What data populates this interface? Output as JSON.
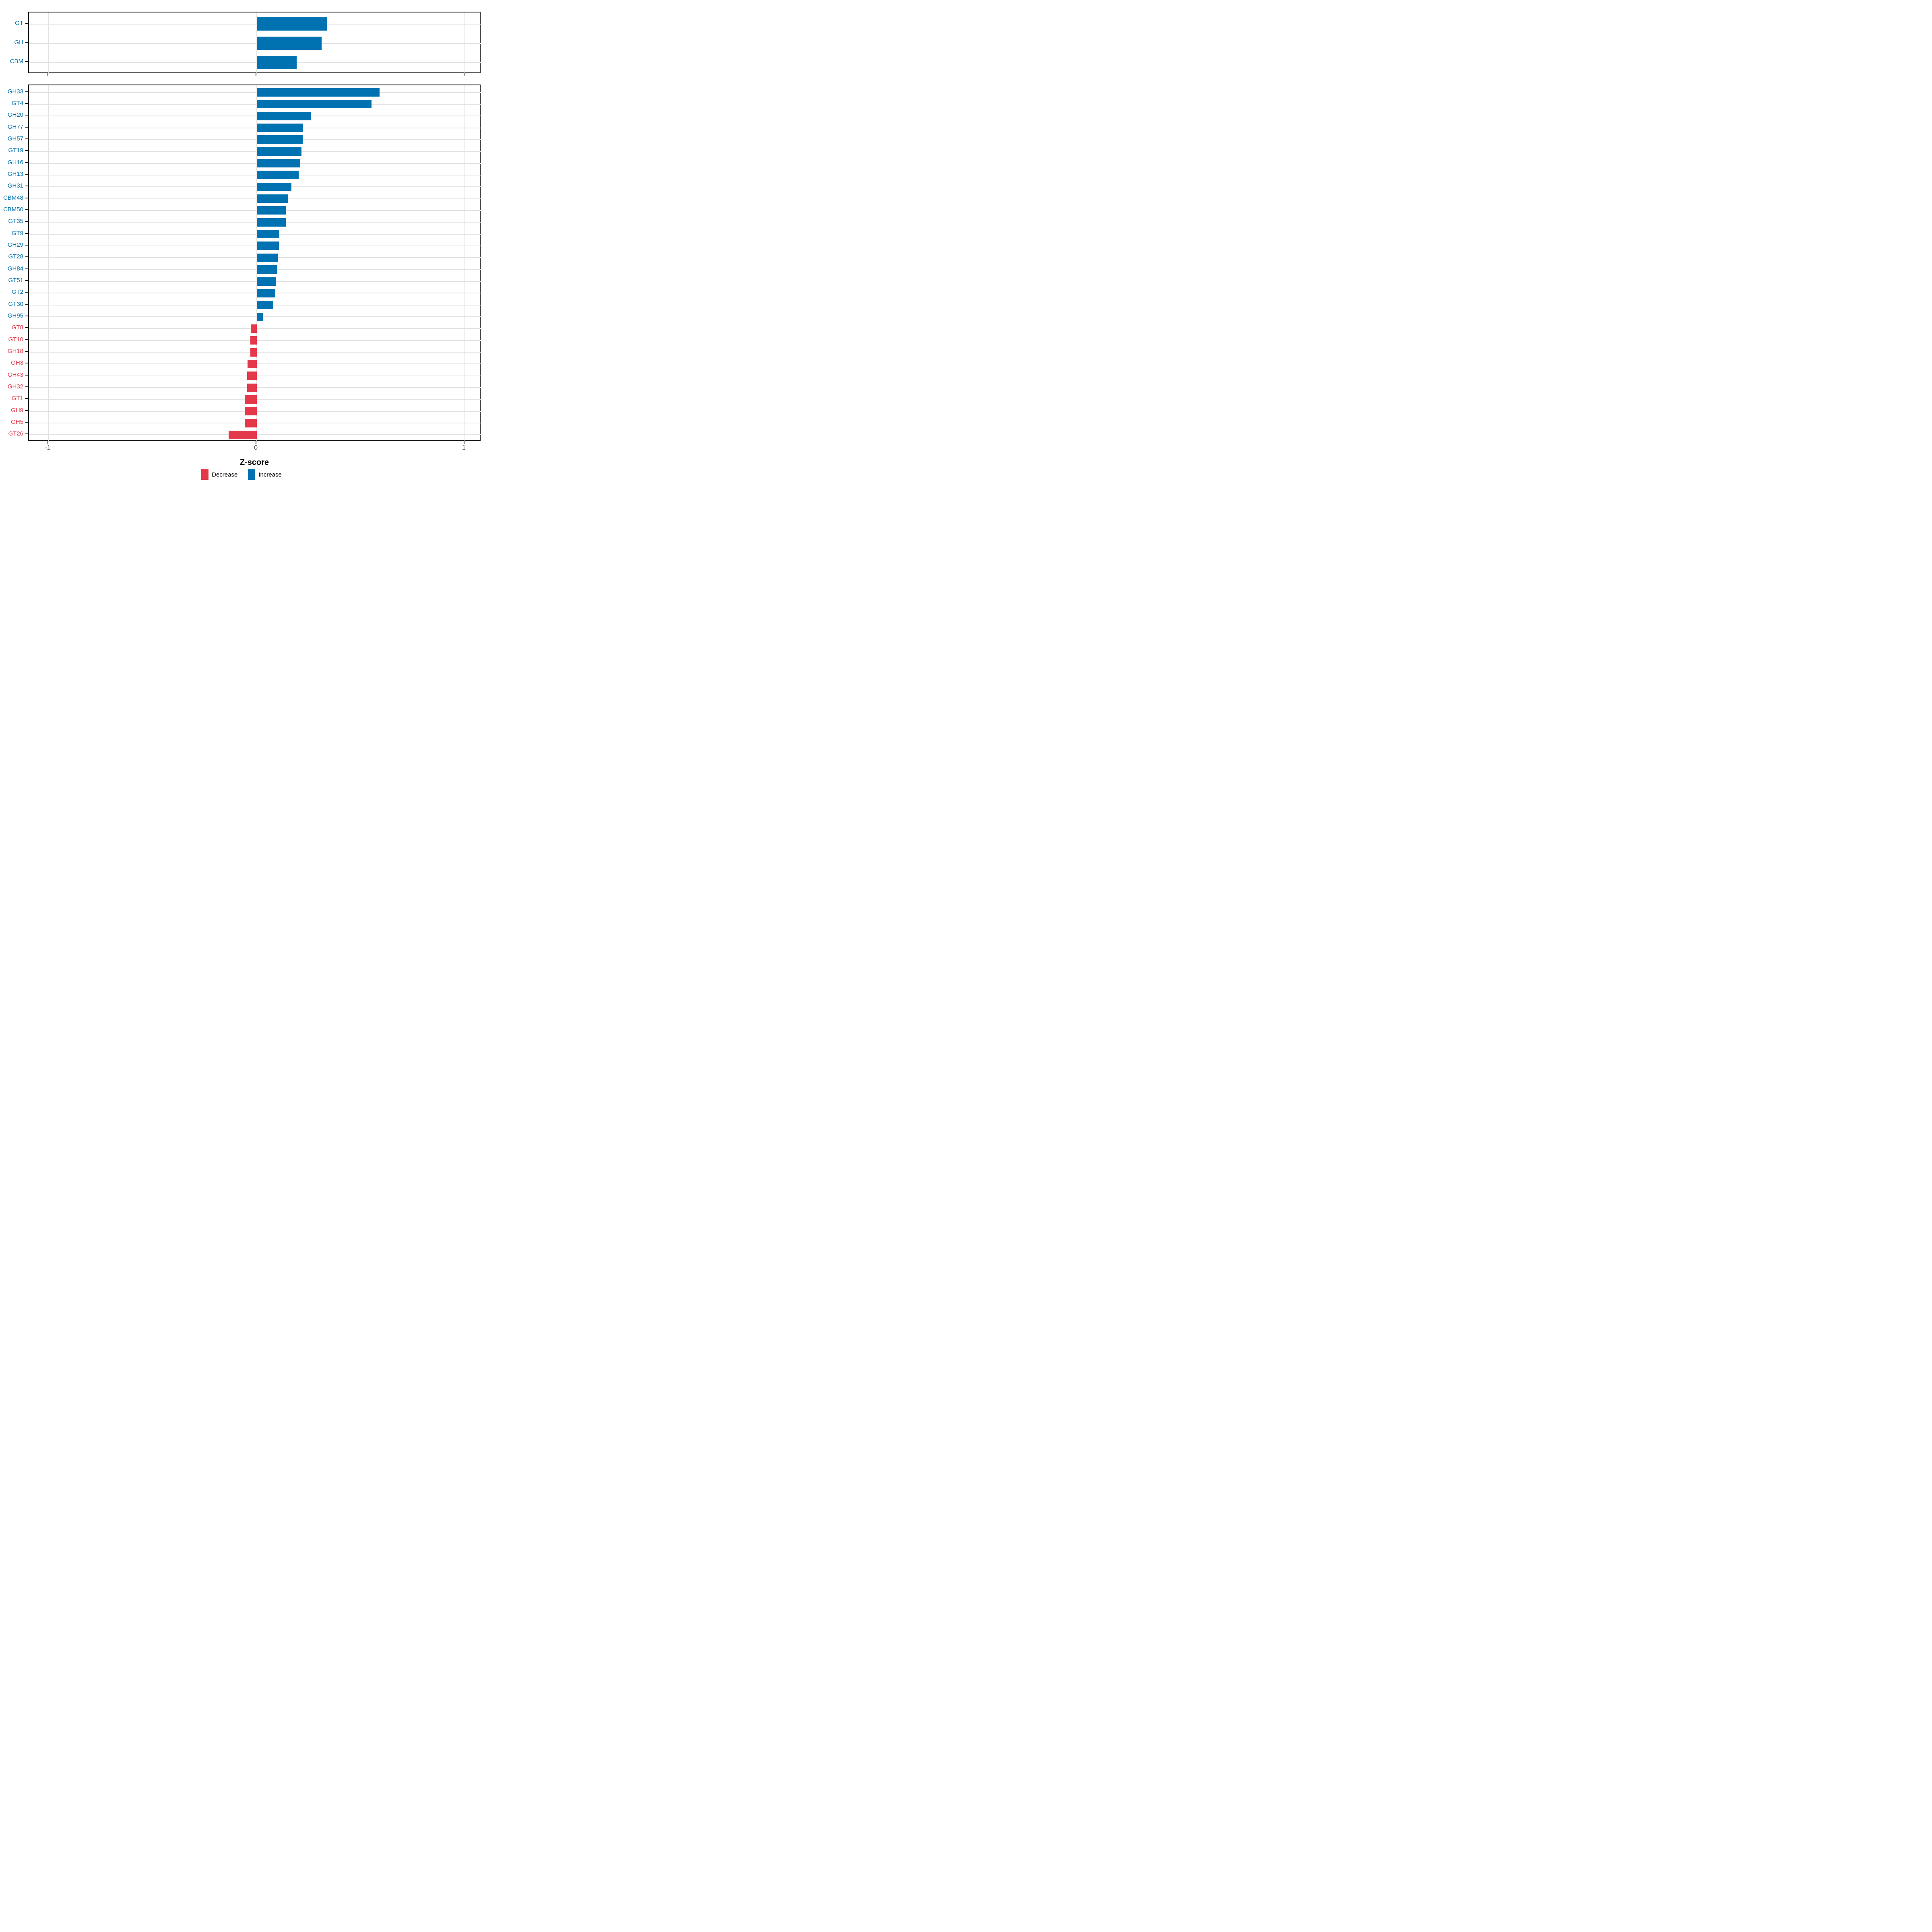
{
  "axis": {
    "xlabel": "Z-score",
    "ticks": [
      {
        "value": -1,
        "label": "-1"
      },
      {
        "value": 0,
        "label": "0"
      },
      {
        "value": 1,
        "label": "1"
      }
    ],
    "xlim": [
      -1.09,
      1.08
    ]
  },
  "colors": {
    "increase": "#0072B2",
    "decrease": "#E4394A",
    "axis_text": "#4D4D4D",
    "grid": "#E2E2E2",
    "panel_border": "#000000",
    "tick_mark": "#222222"
  },
  "legend": {
    "items": [
      {
        "label": "Decrease",
        "key": "decrease"
      },
      {
        "label": "Increase",
        "key": "increase"
      }
    ]
  },
  "chart_data": [
    {
      "type": "bar",
      "orientation": "horizontal",
      "panel": "cazyme-classes",
      "categories": [
        "GT",
        "GH",
        "CBM"
      ],
      "values": [
        0.34,
        0.313,
        0.193
      ],
      "xlabel": "Z-score",
      "xlim": [
        -1.09,
        1.08
      ],
      "grid": "major",
      "legend_position": "bottom"
    },
    {
      "type": "bar",
      "orientation": "horizontal",
      "panel": "cazyme-families",
      "categories": [
        "GH33",
        "GT4",
        "GH20",
        "GH77",
        "GH57",
        "GT19",
        "GH16",
        "GH13",
        "GH31",
        "CBM48",
        "CBM50",
        "GT35",
        "GT9",
        "GH29",
        "GT28",
        "GH84",
        "GT51",
        "GT2",
        "GT30",
        "GH95",
        "GT8",
        "GT10",
        "GH18",
        "GH3",
        "GH43",
        "GH32",
        "GT1",
        "GH9",
        "GH5",
        "GT26"
      ],
      "values": [
        0.59,
        0.552,
        0.261,
        0.223,
        0.222,
        0.216,
        0.21,
        0.202,
        0.168,
        0.152,
        0.141,
        0.14,
        0.11,
        0.108,
        0.101,
        0.097,
        0.092,
        0.09,
        0.081,
        0.03,
        -0.029,
        -0.03,
        -0.031,
        -0.044,
        -0.046,
        -0.046,
        -0.057,
        -0.058,
        -0.058,
        -0.135
      ],
      "xlabel": "Z-score",
      "xlim": [
        -1.09,
        1.08
      ],
      "grid": "major",
      "legend_position": "bottom"
    }
  ]
}
